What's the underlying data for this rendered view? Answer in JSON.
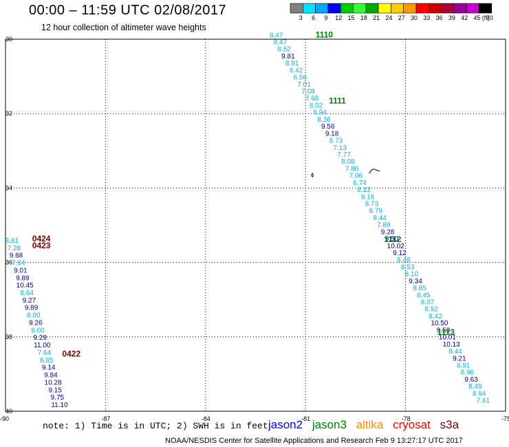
{
  "header": {
    "title": "00:00 – 11:59 UTC 02/08/2017",
    "subtitle": "12 hour collection of altimeter wave heights"
  },
  "colorbar": {
    "labels": [
      "3",
      "6",
      "9",
      "12",
      "15",
      "18",
      "21",
      "24",
      "27",
      "30",
      "33",
      "36",
      "39",
      "42",
      "45",
      "70",
      "(ft)"
    ],
    "colors": [
      "#808080",
      "#00e4ff",
      "#00a8ff",
      "#0000ff",
      "#00cc00",
      "#33ff33",
      "#00aa00",
      "#ffff00",
      "#ffcc00",
      "#ff9900",
      "#ff0000",
      "#cc0000",
      "#aa0033",
      "#990099",
      "#cc00cc",
      "#000000"
    ]
  },
  "axes": {
    "x_ticks": [
      {
        "lon": -90,
        "label": "-90"
      },
      {
        "lon": -87,
        "label": "-87"
      },
      {
        "lon": -84,
        "label": "-84"
      },
      {
        "lon": -81,
        "label": "-81"
      },
      {
        "lon": -78,
        "label": "-78"
      },
      {
        "lon": -75,
        "label": "-75"
      }
    ],
    "y_ticks": [
      {
        "lat": 30,
        "label": "30"
      },
      {
        "lat": 32,
        "label": "32"
      },
      {
        "lat": 34,
        "label": "34"
      },
      {
        "lat": 36,
        "label": "36"
      },
      {
        "lat": 38,
        "label": "38"
      },
      {
        "lat": 40,
        "label": "40"
      }
    ]
  },
  "colors": {
    "light": "#00b4e6",
    "dark": "#0000a0",
    "green": "#008000",
    "maroon": "#7a0000",
    "jason2": "#0000ff",
    "jason3": "#008000",
    "altika": "#ff8c00",
    "cryosat": "#ff0000",
    "s3a": "#7a0000"
  },
  "tracks": [
    {
      "name": "track-east",
      "start": {
        "lon": -81.88,
        "lat": 29.95
      },
      "end": {
        "lon": -75.67,
        "lat": 39.77
      },
      "points": [
        {
          "v": "8.47",
          "c": "light"
        },
        {
          "v": "8.47",
          "c": "light"
        },
        {
          "v": "8.52",
          "c": "light"
        },
        {
          "v": "9.81",
          "c": "dark"
        },
        {
          "v": "8.91",
          "c": "light"
        },
        {
          "v": "8.42",
          "c": "light"
        },
        {
          "v": "6.56",
          "c": "light"
        },
        {
          "v": "7.01",
          "c": "light"
        },
        {
          "v": "7.08",
          "c": "light"
        },
        {
          "v": "7.68",
          "c": "light"
        },
        {
          "v": "8.02",
          "c": "light"
        },
        {
          "v": "8.94",
          "c": "light"
        },
        {
          "v": "8.36",
          "c": "light"
        },
        {
          "v": "9.56",
          "c": "dark"
        },
        {
          "v": "9.18",
          "c": "dark"
        },
        {
          "v": "8.73",
          "c": "light"
        },
        {
          "v": "7.13",
          "c": "light"
        },
        {
          "v": "7.77",
          "c": "light"
        },
        {
          "v": "8.08",
          "c": "light"
        },
        {
          "v": "7.80",
          "c": "light"
        },
        {
          "v": "7.06",
          "c": "light"
        },
        {
          "v": "6.74",
          "c": "light"
        },
        {
          "v": "8.13",
          "c": "light"
        },
        {
          "v": "8.16",
          "c": "light"
        },
        {
          "v": "8.73",
          "c": "light"
        },
        {
          "v": "8.79",
          "c": "light"
        },
        {
          "v": "8.44",
          "c": "light"
        },
        {
          "v": "7.89",
          "c": "light"
        },
        {
          "v": "9.28",
          "c": "dark"
        },
        {
          "v": "9.50",
          "c": "dark"
        },
        {
          "v": "10.02",
          "c": "dark"
        },
        {
          "v": "9.12",
          "c": "dark"
        },
        {
          "v": "8.48",
          "c": "light"
        },
        {
          "v": "8.53",
          "c": "light"
        },
        {
          "v": "8.10",
          "c": "light"
        },
        {
          "v": "9.34",
          "c": "dark"
        },
        {
          "v": "8.85",
          "c": "light"
        },
        {
          "v": "8.45",
          "c": "light"
        },
        {
          "v": "8.07",
          "c": "light"
        },
        {
          "v": "8.52",
          "c": "light"
        },
        {
          "v": "8.42",
          "c": "light"
        },
        {
          "v": "10.50",
          "c": "dark"
        },
        {
          "v": "9.53",
          "c": "dark"
        },
        {
          "v": "10.01",
          "c": "dark"
        },
        {
          "v": "10.13",
          "c": "dark"
        },
        {
          "v": "8.44",
          "c": "light"
        },
        {
          "v": "9.21",
          "c": "dark"
        },
        {
          "v": "8.91",
          "c": "light"
        },
        {
          "v": "8.96",
          "c": "light"
        },
        {
          "v": "9.63",
          "c": "dark"
        },
        {
          "v": "8.49",
          "c": "light"
        },
        {
          "v": "8.94",
          "c": "light"
        },
        {
          "v": "7.61",
          "c": "light"
        }
      ]
    },
    {
      "name": "track-west",
      "start": {
        "lon": -89.81,
        "lat": 35.47
      },
      "end": {
        "lon": -88.38,
        "lat": 39.89
      },
      "points": [
        {
          "v": "8.81",
          "c": "light"
        },
        {
          "v": "7.28",
          "c": "light"
        },
        {
          "v": "9.68",
          "c": "dark"
        },
        {
          "v": "7.84",
          "c": "light"
        },
        {
          "v": "9.01",
          "c": "dark"
        },
        {
          "v": "9.89",
          "c": "dark"
        },
        {
          "v": "10.45",
          "c": "dark"
        },
        {
          "v": "8.64",
          "c": "light"
        },
        {
          "v": "9.27",
          "c": "dark"
        },
        {
          "v": "9.89",
          "c": "dark"
        },
        {
          "v": "8.00",
          "c": "light"
        },
        {
          "v": "9.26",
          "c": "dark"
        },
        {
          "v": "9.00",
          "c": "light"
        },
        {
          "v": "9.29",
          "c": "dark"
        },
        {
          "v": "11.00",
          "c": "dark"
        },
        {
          "v": "7.64",
          "c": "light"
        },
        {
          "v": "8.65",
          "c": "light"
        },
        {
          "v": "9.14",
          "c": "dark"
        },
        {
          "v": "9.84",
          "c": "dark"
        },
        {
          "v": "10.28",
          "c": "dark"
        },
        {
          "v": "9.15",
          "c": "dark"
        },
        {
          "v": "9.75",
          "c": "dark"
        },
        {
          "v": "11.10",
          "c": "dark"
        }
      ]
    }
  ],
  "time_labels": [
    {
      "text": "1110",
      "lon": -80.7,
      "lat": 29.95,
      "c": "green"
    },
    {
      "text": "1111",
      "lon": -80.3,
      "lat": 31.73,
      "c": "green"
    },
    {
      "text": "1112",
      "lon": -78.65,
      "lat": 35.45,
      "c": "green"
    },
    {
      "text": "1113",
      "lon": -77.05,
      "lat": 37.95,
      "c": "green"
    },
    {
      "text": "0424",
      "lon": -89.2,
      "lat": 35.43,
      "c": "maroon"
    },
    {
      "text": "0423",
      "lon": -89.2,
      "lat": 35.62,
      "c": "maroon"
    },
    {
      "text": "0422",
      "lon": -88.3,
      "lat": 38.53,
      "c": "maroon"
    }
  ],
  "footer": {
    "note": "note: 1) Time is in UTC; 2) SWH is in feet",
    "satellites": {
      "jason2": "jason2",
      "jason3": "jason3",
      "altika": "altika",
      "cryosat": "cryosat",
      "s3a": "s3a"
    },
    "credit": "NOAA/NESDIS Center for Satellite Applications and Research    Feb  9 13:27:17 UTC 2017"
  }
}
